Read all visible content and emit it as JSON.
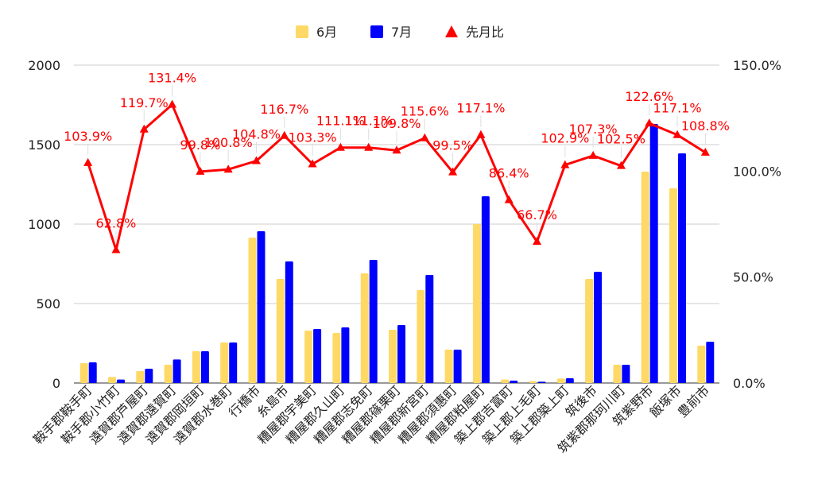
{
  "chart_data": {
    "type": "bar",
    "categories": [
      "鞍手郡鞍手町",
      "鞍手郡小竹町",
      "遠賀郡芦屋町",
      "遠賀郡遠賀町",
      "遠賀郡岡垣町",
      "遠賀郡水巻町",
      "行橋市",
      "糸島市",
      "糟屋郡宇美町",
      "糟屋郡久山町",
      "糟屋郡志免町",
      "糟屋郡篠栗町",
      "糟屋郡新宮町",
      "糟屋郡須惠町",
      "糟屋郡粕屋町",
      "築上郡吉富町",
      "築上郡上毛町",
      "築上郡築上町",
      "筑後市",
      "筑紫郡那珂川町",
      "筑紫野市",
      "飯塚市",
      "豊前市"
    ],
    "series": [
      {
        "name": "6月",
        "color": "#FFD966",
        "axis": "left",
        "kind": "bar",
        "values": [
          125,
          38,
          75,
          115,
          200,
          255,
          915,
          655,
          330,
          315,
          690,
          335,
          585,
          210,
          1000,
          22,
          12,
          28,
          655,
          115,
          1330,
          1225,
          235
        ]
      },
      {
        "name": "7月",
        "color": "#0000FF",
        "axis": "left",
        "kind": "bar",
        "values": [
          130,
          22,
          90,
          148,
          200,
          255,
          955,
          765,
          340,
          350,
          775,
          365,
          680,
          210,
          1175,
          15,
          8,
          30,
          700,
          115,
          1630,
          1445,
          260
        ]
      },
      {
        "name": "先月比",
        "color": "#FF0000",
        "axis": "right",
        "kind": "line-marker",
        "values": [
          103.9,
          62.8,
          119.7,
          131.4,
          99.8,
          100.8,
          104.8,
          116.7,
          103.3,
          111.1,
          111.1,
          109.8,
          115.6,
          99.5,
          117.1,
          86.4,
          66.7,
          102.9,
          107.3,
          102.5,
          122.6,
          117.1,
          108.8
        ],
        "labels": [
          "103.9%",
          "62.8%",
          "119.7%",
          "131.4%",
          "99.8%",
          "100.8%",
          "104.8%",
          "116.7%",
          "103.3%",
          "111.1%",
          "111.1%",
          "109.8%",
          "115.6%",
          "99.5%",
          "117.1%",
          "86.4%",
          "66.7%",
          "102.9%",
          "107.3%",
          "102.5%",
          "122.6%",
          "117.1%",
          "108.8%"
        ]
      }
    ],
    "y_left": {
      "min": 0,
      "max": 2000,
      "ticks": [
        "0",
        "500",
        "1000",
        "1500",
        "2000"
      ]
    },
    "y_right": {
      "min": 0,
      "max": 150,
      "ticks": [
        "0.0%",
        "50.0%",
        "100.0%",
        "150.0%"
      ]
    },
    "grid": true,
    "legend_position": "top-center"
  }
}
